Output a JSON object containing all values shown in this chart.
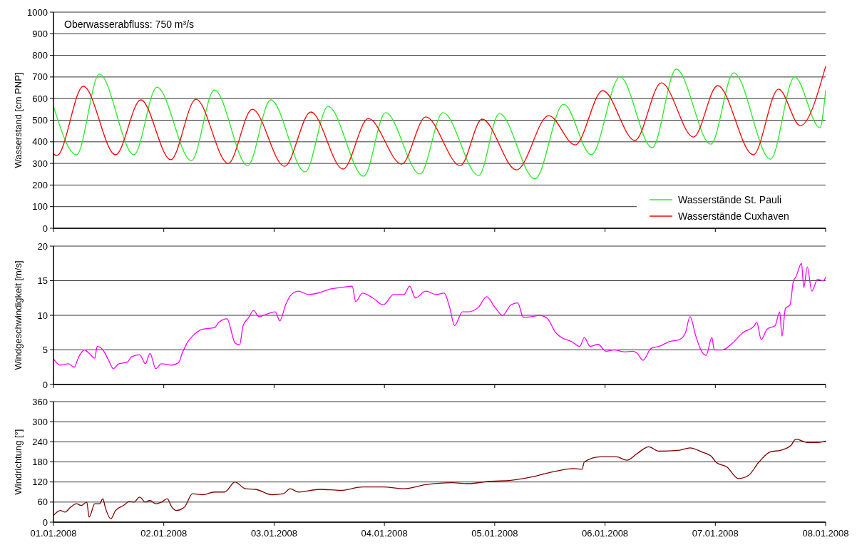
{
  "chart_data": [
    {
      "type": "line",
      "ylabel": "Wasserstand [cm PNP]",
      "annotations": [
        "Oberwasserabfluss: 750 m³/s"
      ],
      "xlim": [
        "2008-01-01",
        "2008-01-08"
      ],
      "xticks": [
        {
          "value": "2008-01-01",
          "label": null
        },
        {
          "value": "2008-01-02",
          "label": null
        },
        {
          "value": "2008-01-03",
          "label": null
        },
        {
          "value": "2008-01-04",
          "label": null
        },
        {
          "value": "2008-01-05",
          "label": null
        },
        {
          "value": "2008-01-06",
          "label": null
        },
        {
          "value": "2008-01-07",
          "label": null
        },
        {
          "value": "2008-01-08",
          "label": null
        }
      ],
      "ylim": [
        0,
        1000
      ],
      "yticks": [
        0,
        100,
        200,
        300,
        400,
        500,
        600,
        700,
        800,
        900,
        1000
      ],
      "grid": "y",
      "tick_labels": "y",
      "legend": "bottom right",
      "marker": "none",
      "line_style": "solid",
      "series": [
        {
          "name": "Wasserstände St. Pauli",
          "color": "#22ee22",
          "x": [
            "2008-01-01T00:00",
            "2008-01-01T05:00",
            "2008-01-01T10:00",
            "2008-01-01T17:30",
            "2008-01-01T22:30",
            "2008-01-02T06:00",
            "2008-01-02T11:00",
            "2008-01-02T18:15",
            "2008-01-02T23:15",
            "2008-01-03T06:45",
            "2008-01-03T11:45",
            "2008-01-03T19:30",
            "2008-01-04T00:15",
            "2008-01-04T07:45",
            "2008-01-04T12:45",
            "2008-01-04T20:30",
            "2008-01-05T01:00",
            "2008-01-05T08:45",
            "2008-01-05T15:00",
            "2008-01-05T21:00",
            "2008-01-06T03:15",
            "2008-01-06T10:15",
            "2008-01-06T15:30",
            "2008-01-06T23:00",
            "2008-01-07T04:00",
            "2008-01-07T12:00",
            "2008-01-07T17:15",
            "2008-01-07T22:45",
            "2008-01-08T00:00"
          ],
          "values": [
            564,
            340,
            713,
            340,
            653,
            313,
            640,
            290,
            594,
            261,
            564,
            241,
            535,
            251,
            535,
            244,
            531,
            228,
            574,
            340,
            700,
            373,
            736,
            389,
            719,
            320,
            700,
            465,
            637
          ]
        },
        {
          "name": "Wasserstände Cuxhaven",
          "color": "#ff0000",
          "x": [
            "2008-01-01T00:00",
            "2008-01-01T00:45",
            "2008-01-01T06:30",
            "2008-01-01T13:30",
            "2008-01-01T19:00",
            "2008-01-02T01:30",
            "2008-01-02T07:00",
            "2008-01-02T14:00",
            "2008-01-02T19:15",
            "2008-01-03T02:15",
            "2008-01-03T08:00",
            "2008-01-03T15:00",
            "2008-01-03T20:30",
            "2008-01-04T03:45",
            "2008-01-04T09:00",
            "2008-01-04T16:30",
            "2008-01-04T21:15",
            "2008-01-05T04:45",
            "2008-01-05T11:45",
            "2008-01-05T17:30",
            "2008-01-05T23:30",
            "2008-01-06T06:30",
            "2008-01-06T12:15",
            "2008-01-06T19:15",
            "2008-01-07T00:30",
            "2008-01-07T08:15",
            "2008-01-07T13:45",
            "2008-01-07T18:30",
            "2008-01-08T00:00"
          ],
          "values": [
            343,
            337,
            657,
            340,
            594,
            317,
            597,
            300,
            551,
            287,
            538,
            274,
            508,
            297,
            515,
            290,
            505,
            270,
            521,
            386,
            637,
            406,
            673,
            422,
            660,
            340,
            644,
            475,
            749
          ]
        }
      ]
    },
    {
      "type": "line",
      "ylabel": "Windgeschwindigkeit [m/s]",
      "xlim": [
        "2008-01-01",
        "2008-01-08"
      ],
      "xticks": [
        {
          "value": "2008-01-01",
          "label": null
        },
        {
          "value": "2008-01-02",
          "label": null
        },
        {
          "value": "2008-01-03",
          "label": null
        },
        {
          "value": "2008-01-04",
          "label": null
        },
        {
          "value": "2008-01-05",
          "label": null
        },
        {
          "value": "2008-01-06",
          "label": null
        },
        {
          "value": "2008-01-07",
          "label": null
        },
        {
          "value": "2008-01-08",
          "label": null
        }
      ],
      "ylim": [
        0,
        20
      ],
      "yticks": [
        0,
        5,
        10,
        15,
        20
      ],
      "grid": "y",
      "tick_labels": "y",
      "marker": "none",
      "line_style": "solid",
      "series": [
        {
          "color": "#ff00ff",
          "x": [
            "2008-01-01T00:00",
            "2008-01-01T01:30",
            "2008-01-01T03:15",
            "2008-01-01T04:30",
            "2008-01-01T05:30",
            "2008-01-01T06:45",
            "2008-01-01T07:45",
            "2008-01-01T09:00",
            "2008-01-01T09:30",
            "2008-01-01T10:45",
            "2008-01-01T12:00",
            "2008-01-01T13:00",
            "2008-01-01T14:15",
            "2008-01-01T16:00",
            "2008-01-01T17:00",
            "2008-01-01T18:45",
            "2008-01-01T20:00",
            "2008-01-01T21:00",
            "2008-01-01T22:15",
            "2008-01-01T23:30",
            "2008-01-02T01:45",
            "2008-01-02T03:15",
            "2008-01-02T04:00",
            "2008-01-02T05:15",
            "2008-01-02T06:15",
            "2008-01-02T08:30",
            "2008-01-02T11:00",
            "2008-01-02T12:00",
            "2008-01-02T13:45",
            "2008-01-02T15:30",
            "2008-01-02T16:30",
            "2008-01-02T17:15",
            "2008-01-02T18:30",
            "2008-01-02T19:30",
            "2008-01-02T20:45",
            "2008-01-02T22:30",
            "2008-01-03T00:15",
            "2008-01-03T01:15",
            "2008-01-03T02:30",
            "2008-01-03T03:30",
            "2008-01-03T05:15",
            "2008-01-03T07:30",
            "2008-01-03T10:00",
            "2008-01-03T12:15",
            "2008-01-03T14:30",
            "2008-01-03T17:00",
            "2008-01-03T17:45",
            "2008-01-03T19:15",
            "2008-01-03T21:30",
            "2008-01-03T23:45",
            "2008-01-04T02:00",
            "2008-01-04T04:15",
            "2008-01-04T05:30",
            "2008-01-04T06:45",
            "2008-01-04T09:00",
            "2008-01-04T11:15",
            "2008-01-04T13:00",
            "2008-01-04T14:15",
            "2008-01-04T15:15",
            "2008-01-04T17:00",
            "2008-01-04T18:15",
            "2008-01-04T20:30",
            "2008-01-04T22:15",
            "2008-01-05T00:00",
            "2008-01-05T01:45",
            "2008-01-05T03:30",
            "2008-01-05T05:00",
            "2008-01-05T06:15",
            "2008-01-05T08:00",
            "2008-01-05T09:45",
            "2008-01-05T11:30",
            "2008-01-05T13:15",
            "2008-01-05T14:30",
            "2008-01-05T16:45",
            "2008-01-05T18:30",
            "2008-01-05T19:30",
            "2008-01-05T20:45",
            "2008-01-05T22:30",
            "2008-01-06T00:15",
            "2008-01-06T02:00",
            "2008-01-06T04:15",
            "2008-01-06T06:00",
            "2008-01-06T07:00",
            "2008-01-06T08:15",
            "2008-01-06T10:00",
            "2008-01-06T11:45",
            "2008-01-06T14:00",
            "2008-01-06T16:15",
            "2008-01-06T17:30",
            "2008-01-06T18:30",
            "2008-01-06T19:45",
            "2008-01-06T21:00",
            "2008-01-06T22:00",
            "2008-01-06T23:15",
            "2008-01-06T23:45",
            "2008-01-07T01:30",
            "2008-01-07T03:45",
            "2008-01-07T06:00",
            "2008-01-07T08:30",
            "2008-01-07T09:00",
            "2008-01-07T10:00",
            "2008-01-07T11:15",
            "2008-01-07T13:00",
            "2008-01-07T14:00",
            "2008-01-07T14:30",
            "2008-01-07T15:15",
            "2008-01-07T16:15",
            "2008-01-07T17:00",
            "2008-01-07T17:30",
            "2008-01-07T18:45",
            "2008-01-07T19:15",
            "2008-01-07T20:00",
            "2008-01-07T21:00",
            "2008-01-07T22:15",
            "2008-01-07T23:30",
            "2008-01-08T00:00"
          ],
          "values": [
            3.7,
            2.8,
            3.0,
            2.5,
            4.0,
            5.0,
            4.5,
            3.8,
            5.5,
            5.0,
            3.5,
            2.3,
            3.0,
            3.2,
            4.0,
            4.3,
            3.0,
            4.5,
            2.3,
            3.0,
            2.8,
            3.2,
            4.5,
            6.2,
            7.0,
            8.0,
            8.2,
            9.0,
            9.5,
            6.0,
            5.7,
            8.5,
            9.7,
            10.7,
            9.8,
            10.2,
            10.5,
            9.2,
            11.5,
            12.8,
            13.5,
            13.0,
            13.3,
            13.8,
            14.0,
            14.2,
            12.0,
            13.2,
            12.5,
            11.5,
            13.0,
            13.0,
            14.2,
            12.5,
            13.5,
            13.0,
            13.2,
            11.0,
            8.5,
            10.5,
            10.5,
            11.2,
            12.7,
            11.2,
            10.0,
            11.5,
            11.8,
            9.7,
            9.8,
            10.0,
            9.5,
            7.5,
            6.8,
            6.2,
            5.5,
            6.8,
            5.5,
            5.8,
            4.8,
            5.0,
            4.7,
            4.8,
            4.5,
            3.5,
            5.2,
            5.5,
            6.2,
            6.5,
            7.5,
            9.8,
            7.0,
            4.8,
            4.2,
            6.8,
            5.0,
            5.0,
            6.0,
            7.5,
            8.5,
            9.0,
            6.5,
            8.0,
            8.5,
            10.5,
            7.0,
            11.0,
            11.5,
            15.0,
            15.5,
            17.5,
            14.0,
            17.0,
            13.5,
            15.2,
            15.0,
            15.5
          ]
        }
      ]
    },
    {
      "type": "line",
      "ylabel": "Windrichtung [°]",
      "xlim": [
        "2008-01-01",
        "2008-01-08"
      ],
      "xticks": [
        {
          "value": "2008-01-01",
          "label": "01.01.2008"
        },
        {
          "value": "2008-01-02",
          "label": "02.01.2008"
        },
        {
          "value": "2008-01-03",
          "label": "03.01.2008"
        },
        {
          "value": "2008-01-04",
          "label": "04.01.2008"
        },
        {
          "value": "2008-01-05",
          "label": "05.01.2008"
        },
        {
          "value": "2008-01-06",
          "label": "06.01.2008"
        },
        {
          "value": "2008-01-07",
          "label": "07.01.2008"
        },
        {
          "value": "2008-01-08",
          "label": "08.01.2008"
        }
      ],
      "ylim": [
        0,
        360
      ],
      "yticks": [
        0,
        60,
        120,
        180,
        240,
        300,
        360
      ],
      "grid": "y",
      "marker": "none",
      "line_style": "solid",
      "series": [
        {
          "color": "#800000",
          "x": [
            "2008-01-01T00:00",
            "2008-01-01T01:30",
            "2008-01-01T02:30",
            "2008-01-01T03:45",
            "2008-01-01T05:00",
            "2008-01-01T06:00",
            "2008-01-01T07:15",
            "2008-01-01T07:45",
            "2008-01-01T09:00",
            "2008-01-01T10:00",
            "2008-01-01T10:45",
            "2008-01-01T11:15",
            "2008-01-01T12:30",
            "2008-01-01T13:30",
            "2008-01-01T15:15",
            "2008-01-01T16:30",
            "2008-01-01T17:30",
            "2008-01-01T18:45",
            "2008-01-01T20:00",
            "2008-01-01T21:00",
            "2008-01-01T22:15",
            "2008-01-01T23:30",
            "2008-01-02T00:45",
            "2008-01-02T01:45",
            "2008-01-02T02:45",
            "2008-01-02T04:30",
            "2008-01-02T06:15",
            "2008-01-02T08:30",
            "2008-01-02T11:00",
            "2008-01-02T13:15",
            "2008-01-02T15:30",
            "2008-01-02T17:45",
            "2008-01-02T20:00",
            "2008-01-02T23:30",
            "2008-01-03T02:00",
            "2008-01-03T03:30",
            "2008-01-03T05:15",
            "2008-01-03T10:00",
            "2008-01-03T14:30",
            "2008-01-03T19:15",
            "2008-01-03T23:45",
            "2008-01-04T04:15",
            "2008-01-04T09:00",
            "2008-01-04T14:45",
            "2008-01-04T18:15",
            "2008-01-04T22:45",
            "2008-01-05T03:30",
            "2008-01-05T08:00",
            "2008-01-05T12:30",
            "2008-01-05T17:15",
            "2008-01-05T19:00",
            "2008-01-05T19:30",
            "2008-01-05T23:00",
            "2008-01-06T02:30",
            "2008-01-06T04:45",
            "2008-01-06T07:00",
            "2008-01-06T09:30",
            "2008-01-06T11:45",
            "2008-01-06T16:15",
            "2008-01-06T18:30",
            "2008-01-06T21:00",
            "2008-01-06T23:15",
            "2008-01-07T00:15",
            "2008-01-07T02:30",
            "2008-01-07T05:00",
            "2008-01-07T07:15",
            "2008-01-07T09:30",
            "2008-01-07T12:00",
            "2008-01-07T14:15",
            "2008-01-07T16:30",
            "2008-01-07T17:30",
            "2008-01-07T20:00",
            "2008-01-07T22:15",
            "2008-01-08T00:00"
          ],
          "values": [
            20,
            35,
            30,
            45,
            55,
            50,
            60,
            15,
            55,
            55,
            70,
            45,
            10,
            35,
            50,
            62,
            60,
            75,
            60,
            65,
            55,
            60,
            70,
            45,
            35,
            45,
            85,
            82,
            90,
            90,
            120,
            100,
            98,
            82,
            85,
            100,
            90,
            98,
            95,
            105,
            105,
            100,
            112,
            118,
            115,
            122,
            125,
            135,
            150,
            160,
            158,
            180,
            195,
            195,
            185,
            205,
            225,
            212,
            215,
            222,
            210,
            195,
            178,
            165,
            130,
            140,
            180,
            210,
            215,
            230,
            248,
            238,
            238,
            242
          ]
        }
      ]
    }
  ]
}
